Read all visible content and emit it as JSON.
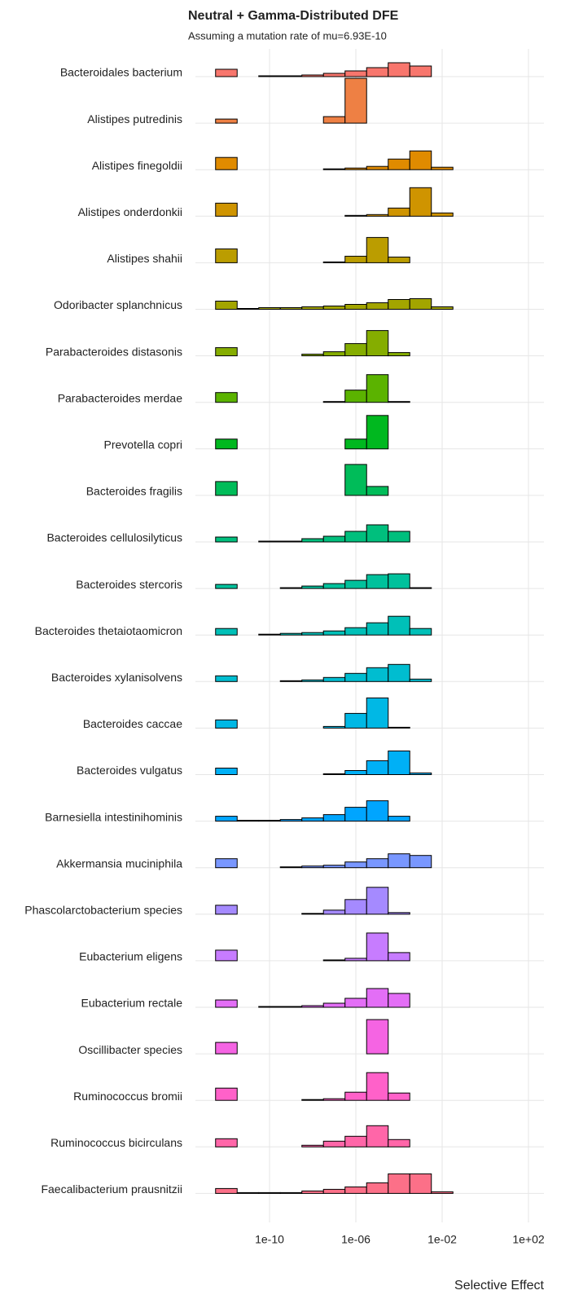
{
  "chart_data": {
    "type": "ridgeline-histogram",
    "title": "Neutral + Gamma-Distributed DFE",
    "subtitle": "Assuming a mutation rate of mu=6.93E-10",
    "xlabel": "Selective Effect",
    "log": true,
    "grid": true,
    "xlim": [
      1e-13,
      1000
    ],
    "xticks": [
      {
        "value": 1e-10,
        "label": "1e-10"
      },
      {
        "value": 1e-06,
        "label": "1e-06"
      },
      {
        "value": 0.01,
        "label": "1e-02"
      },
      {
        "value": 100,
        "label": "1e+02"
      }
    ],
    "bins": [
      3.16e-13,
      3.16e-12,
      3.16e-11,
      3.16e-10,
      3.16e-09,
      3.16e-08,
      3.16e-07,
      3.16e-06,
      3.16e-05,
      0.000316,
      0.00316,
      0.0316,
      0.316,
      3.16,
      31.6
    ],
    "series": [
      {
        "name": "Bacteroidales bacterium",
        "color": "#F8766D",
        "values": [
          9,
          0,
          1,
          1,
          2,
          4,
          7,
          11,
          17,
          13,
          0,
          0,
          0,
          0
        ]
      },
      {
        "name": "Alistipes putredinis",
        "color": "#EE8044",
        "values": [
          5,
          0,
          0,
          0,
          0,
          8,
          55,
          0,
          0,
          0,
          0,
          0,
          0,
          0
        ]
      },
      {
        "name": "Alistipes finegoldii",
        "color": "#E08B00",
        "values": [
          15,
          0,
          0,
          0,
          0,
          1,
          2,
          4,
          13,
          23,
          3,
          0,
          0,
          0
        ]
      },
      {
        "name": "Alistipes onderdonkii",
        "color": "#CF9400",
        "values": [
          16,
          0,
          0,
          0,
          0,
          0,
          1,
          2,
          10,
          35,
          4,
          0,
          0,
          0
        ]
      },
      {
        "name": "Alistipes shahii",
        "color": "#BB9D00",
        "values": [
          17,
          0,
          0,
          0,
          0,
          1,
          8,
          31,
          7,
          0,
          0,
          0,
          0,
          0
        ]
      },
      {
        "name": "Odoribacter splanchnicus",
        "color": "#A3A500",
        "values": [
          10,
          1,
          2,
          2,
          3,
          4,
          6,
          8,
          12,
          13,
          3,
          0,
          0,
          0
        ]
      },
      {
        "name": "Parabacteroides distasonis",
        "color": "#85AD00",
        "values": [
          10,
          0,
          0,
          0,
          2,
          5,
          15,
          31,
          4,
          0,
          0,
          0,
          0,
          0
        ]
      },
      {
        "name": "Parabacteroides merdae",
        "color": "#5BB300",
        "values": [
          12,
          0,
          0,
          0,
          0,
          1,
          15,
          34,
          1,
          0,
          0,
          0,
          0,
          0
        ]
      },
      {
        "name": "Prevotella copri",
        "color": "#00B81F",
        "values": [
          12,
          0,
          0,
          0,
          0,
          0,
          12,
          41,
          0,
          0,
          0,
          0,
          0,
          0
        ]
      },
      {
        "name": "Bacteroides fragilis",
        "color": "#00BC59",
        "values": [
          17,
          0,
          0,
          0,
          0,
          0,
          38,
          11,
          0,
          0,
          0,
          0,
          0,
          0
        ]
      },
      {
        "name": "Bacteroides cellulosilyticus",
        "color": "#00BF7D",
        "values": [
          6,
          0,
          1,
          1,
          4,
          7,
          13,
          21,
          13,
          0,
          0,
          0,
          0,
          0
        ]
      },
      {
        "name": "Bacteroides stercoris",
        "color": "#00C19C",
        "values": [
          5,
          0,
          0,
          1,
          3,
          6,
          10,
          17,
          18,
          1,
          0,
          0,
          0,
          0
        ]
      },
      {
        "name": "Bacteroides thetaiotaomicron",
        "color": "#00C0B8",
        "values": [
          8,
          0,
          1,
          2,
          3,
          5,
          9,
          15,
          23,
          8,
          0,
          0,
          0,
          0
        ]
      },
      {
        "name": "Bacteroides xylanisolvens",
        "color": "#00BDD0",
        "values": [
          7,
          0,
          0,
          1,
          2,
          5,
          10,
          17,
          21,
          3,
          0,
          0,
          0,
          0
        ]
      },
      {
        "name": "Bacteroides caccae",
        "color": "#00B8E5",
        "values": [
          10,
          0,
          0,
          0,
          0,
          2,
          18,
          37,
          1,
          0,
          0,
          0,
          0,
          0
        ]
      },
      {
        "name": "Bacteroides vulgatus",
        "color": "#00B0F6",
        "values": [
          8,
          0,
          0,
          0,
          0,
          1,
          5,
          17,
          29,
          2,
          0,
          0,
          0,
          0
        ]
      },
      {
        "name": "Barnesiella intestinihominis",
        "color": "#00A5FF",
        "values": [
          6,
          1,
          1,
          2,
          4,
          8,
          17,
          25,
          6,
          0,
          0,
          0,
          0,
          0
        ]
      },
      {
        "name": "Akkermansia muciniphila",
        "color": "#7997FF",
        "values": [
          11,
          0,
          0,
          1,
          2,
          3,
          7,
          11,
          17,
          15,
          0,
          0,
          0,
          0
        ]
      },
      {
        "name": "Phascolarctobacterium species",
        "color": "#A58AFF",
        "values": [
          11,
          0,
          0,
          0,
          1,
          5,
          18,
          33,
          2,
          0,
          0,
          0,
          0,
          0
        ]
      },
      {
        "name": "Eubacterium eligens",
        "color": "#C77CFF",
        "values": [
          13,
          0,
          0,
          0,
          0,
          1,
          3,
          34,
          10,
          0,
          0,
          0,
          0,
          0
        ]
      },
      {
        "name": "Eubacterium rectale",
        "color": "#E36EF6",
        "values": [
          9,
          0,
          1,
          1,
          2,
          5,
          11,
          23,
          17,
          0,
          0,
          0,
          0,
          0
        ]
      },
      {
        "name": "Oscillibacter species",
        "color": "#F564E3",
        "values": [
          14,
          0,
          0,
          0,
          0,
          0,
          0,
          42,
          0,
          0,
          0,
          0,
          0,
          0
        ]
      },
      {
        "name": "Ruminococcus bromii",
        "color": "#FF61C9",
        "values": [
          15,
          0,
          0,
          0,
          1,
          2,
          10,
          34,
          9,
          0,
          0,
          0,
          0,
          0
        ]
      },
      {
        "name": "Ruminococcus bicirculans",
        "color": "#FF66A8",
        "values": [
          10,
          0,
          0,
          0,
          2,
          7,
          13,
          26,
          9,
          0,
          0,
          0,
          0,
          0
        ]
      },
      {
        "name": "Faecalibacterium prausnitzii",
        "color": "#FC7088",
        "values": [
          6,
          1,
          1,
          1,
          3,
          5,
          8,
          13,
          24,
          24,
          2,
          0,
          0,
          0
        ]
      }
    ]
  }
}
